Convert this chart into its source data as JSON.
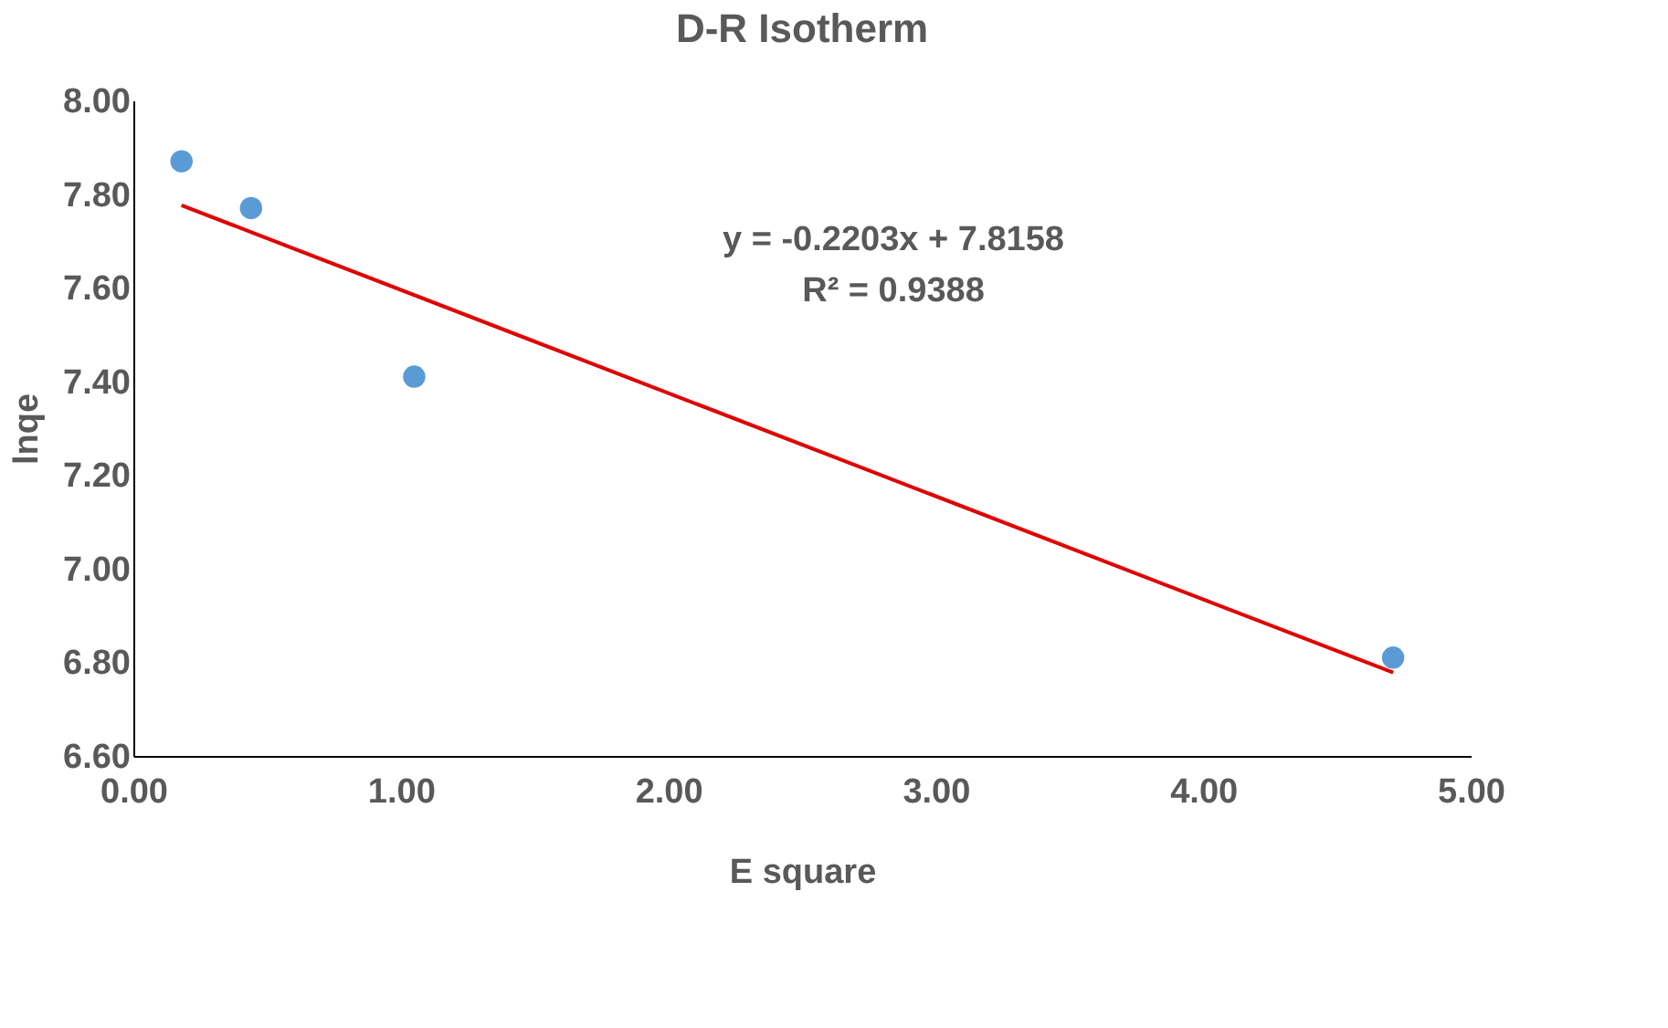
{
  "chart_data": {
    "type": "scatter",
    "title": "D-R Isotherm",
    "xlabel": "E square",
    "ylabel": "lnqe",
    "annotations": [
      "y = -0.2203x + 7.8158",
      "R² = 0.9388"
    ],
    "series": [
      {
        "color": "#5b9bd5",
        "x": [
          0.18,
          0.44,
          1.05,
          4.71
        ],
        "values": [
          7.87,
          7.77,
          7.41,
          6.81
        ]
      },
      {
        "type": "line",
        "marker": "none",
        "color": "#e00000",
        "x": [
          0.18,
          4.71
        ],
        "values": [
          7.776,
          6.778
        ]
      }
    ],
    "xlim": [
      0,
      5
    ],
    "xticks": [
      {
        "value": 0,
        "label": "0.00"
      },
      {
        "value": 1,
        "label": "1.00"
      },
      {
        "value": 2,
        "label": "2.00"
      },
      {
        "value": 3,
        "label": "3.00"
      },
      {
        "value": 4,
        "label": "4.00"
      },
      {
        "value": 5,
        "label": "5.00"
      }
    ],
    "ylim": [
      6.6,
      8.0
    ],
    "yticks": [
      {
        "value": 6.6,
        "label": "6.60"
      },
      {
        "value": 6.8,
        "label": "6.80"
      },
      {
        "value": 7.0,
        "label": "7.00"
      },
      {
        "value": 7.2,
        "label": "7.20"
      },
      {
        "value": 7.4,
        "label": "7.40"
      },
      {
        "value": 7.6,
        "label": "7.60"
      },
      {
        "value": 7.8,
        "label": "7.80"
      },
      {
        "value": 8.0,
        "label": "8.00"
      }
    ],
    "grid": false,
    "marker": "circle",
    "line_style": "solid"
  }
}
